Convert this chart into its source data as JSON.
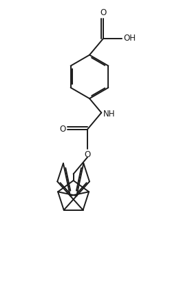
{
  "background_color": "#ffffff",
  "line_color": "#1a1a1a",
  "line_width": 1.4,
  "dbo": 0.06,
  "font_size": 8.5,
  "figsize": [
    2.6,
    4.44
  ],
  "dpi": 100,
  "xlim": [
    -3.5,
    3.5
  ],
  "ylim": [
    -7.5,
    6.5
  ]
}
